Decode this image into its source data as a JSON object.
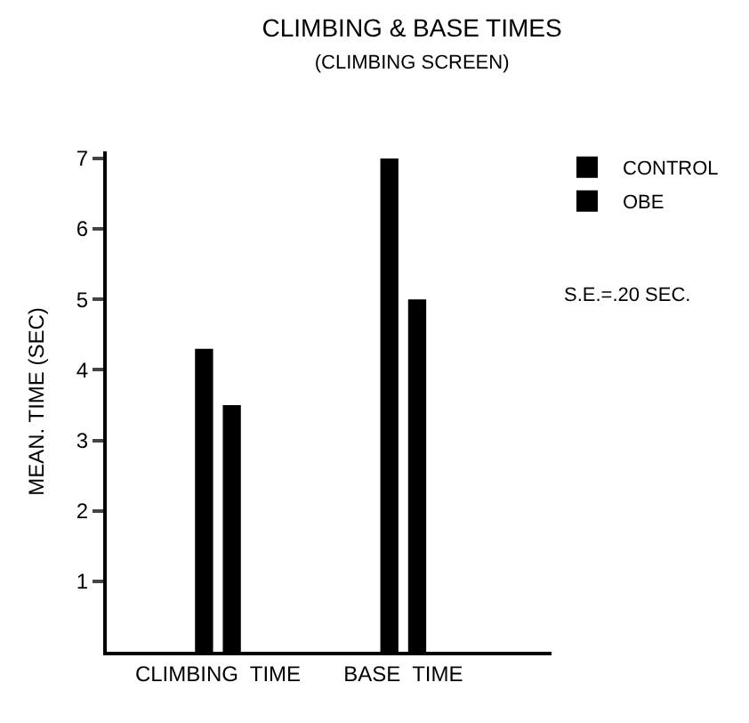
{
  "chart_data": {
    "type": "bar",
    "title": "CLIMBING & BASE TIMES",
    "subtitle": "(CLIMBING SCREEN)",
    "ylabel": "MEAN. TIME (SEC)",
    "categories": [
      "CLIMBING  TIME",
      "BASE  TIME"
    ],
    "series": [
      {
        "name": "CONTROL",
        "color": "#000000",
        "values": [
          4.3,
          7.0
        ]
      },
      {
        "name": "OBE",
        "color": "#000000",
        "values": [
          3.5,
          5.0
        ]
      }
    ],
    "ylim": [
      0,
      7.1
    ],
    "yticks": [
      1,
      2,
      3,
      4,
      5,
      6,
      7
    ],
    "legend": "top right",
    "annotations": [
      "S.E.=.20 SEC."
    ]
  }
}
